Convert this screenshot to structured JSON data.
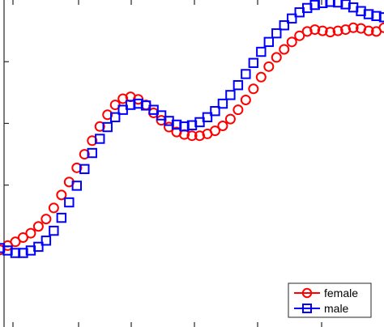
{
  "chart_data": {
    "type": "scatter",
    "title": "",
    "xlabel": "",
    "ylabel": "",
    "grid": false,
    "legend_position": "bottom-right",
    "xlim": [
      0,
      100
    ],
    "ylim": [
      -1.3,
      4.0
    ],
    "series": [
      {
        "name": "female",
        "marker": "circle",
        "color": "#ff0000",
        "x": [
          0,
          2,
          4,
          6,
          8,
          10,
          12,
          14,
          16,
          18,
          20,
          22,
          24,
          26,
          28,
          30,
          32,
          34,
          36,
          38,
          40,
          42,
          44,
          46,
          48,
          50,
          52,
          54,
          56,
          58,
          60,
          62,
          64,
          66,
          68,
          70,
          72,
          74,
          76,
          78,
          80,
          82,
          84,
          86,
          88,
          90,
          92,
          94,
          96,
          98,
          100
        ],
        "y": [
          -0.05,
          0.02,
          0.08,
          0.15,
          0.22,
          0.33,
          0.45,
          0.63,
          0.84,
          1.05,
          1.28,
          1.5,
          1.72,
          1.95,
          2.14,
          2.3,
          2.4,
          2.43,
          2.39,
          2.3,
          2.17,
          2.05,
          1.94,
          1.86,
          1.82,
          1.8,
          1.8,
          1.83,
          1.88,
          1.96,
          2.07,
          2.22,
          2.38,
          2.56,
          2.75,
          2.92,
          3.07,
          3.2,
          3.32,
          3.42,
          3.49,
          3.52,
          3.5,
          3.48,
          3.5,
          3.52,
          3.55,
          3.54,
          3.5,
          3.49,
          3.55
        ]
      },
      {
        "name": "male",
        "marker": "square",
        "color": "#0000ff",
        "x": [
          0,
          2,
          4,
          6,
          8,
          10,
          12,
          14,
          16,
          18,
          20,
          22,
          24,
          26,
          28,
          30,
          32,
          34,
          36,
          38,
          40,
          42,
          44,
          46,
          48,
          50,
          52,
          54,
          56,
          58,
          60,
          62,
          64,
          66,
          68,
          70,
          72,
          74,
          76,
          78,
          80,
          82,
          84,
          86,
          88,
          90,
          92,
          94,
          96,
          98,
          100
        ],
        "y": [
          -0.02,
          -0.06,
          -0.1,
          -0.1,
          -0.06,
          0.0,
          0.1,
          0.26,
          0.47,
          0.72,
          0.99,
          1.26,
          1.52,
          1.75,
          1.94,
          2.1,
          2.22,
          2.3,
          2.32,
          2.29,
          2.22,
          2.13,
          2.04,
          1.98,
          1.95,
          1.97,
          2.02,
          2.1,
          2.2,
          2.32,
          2.46,
          2.62,
          2.8,
          2.98,
          3.16,
          3.32,
          3.46,
          3.59,
          3.7,
          3.8,
          3.87,
          3.92,
          3.95,
          3.97,
          3.96,
          3.93,
          3.88,
          3.82,
          3.77,
          3.74,
          3.72
        ]
      }
    ]
  }
}
